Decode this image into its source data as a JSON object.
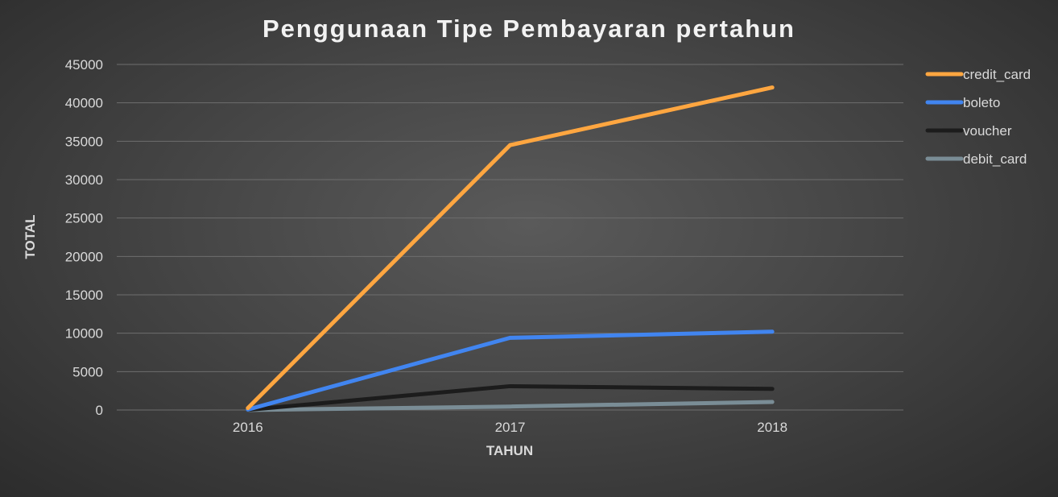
{
  "chart_data": {
    "type": "line",
    "title": "Penggunaan Tipe Pembayaran pertahun",
    "xlabel": "TAHUN",
    "ylabel": "TOTAL",
    "categories": [
      "2016",
      "2017",
      "2018"
    ],
    "ylim": [
      0,
      45000
    ],
    "yticks": [
      0,
      5000,
      10000,
      15000,
      20000,
      25000,
      30000,
      35000,
      40000,
      45000
    ],
    "grid": true,
    "legend_position": "right",
    "series": [
      {
        "name": "credit_card",
        "color": "#ffa640",
        "values": [
          250,
          34500,
          42000
        ]
      },
      {
        "name": "boleto",
        "color": "#4185f0",
        "values": [
          60,
          9400,
          10200
        ]
      },
      {
        "name": "voucher",
        "color": "#1c1c1c",
        "values": [
          20,
          3100,
          2750
        ]
      },
      {
        "name": "debit_card",
        "color": "#7a8d96",
        "values": [
          2,
          450,
          1050
        ]
      }
    ]
  }
}
